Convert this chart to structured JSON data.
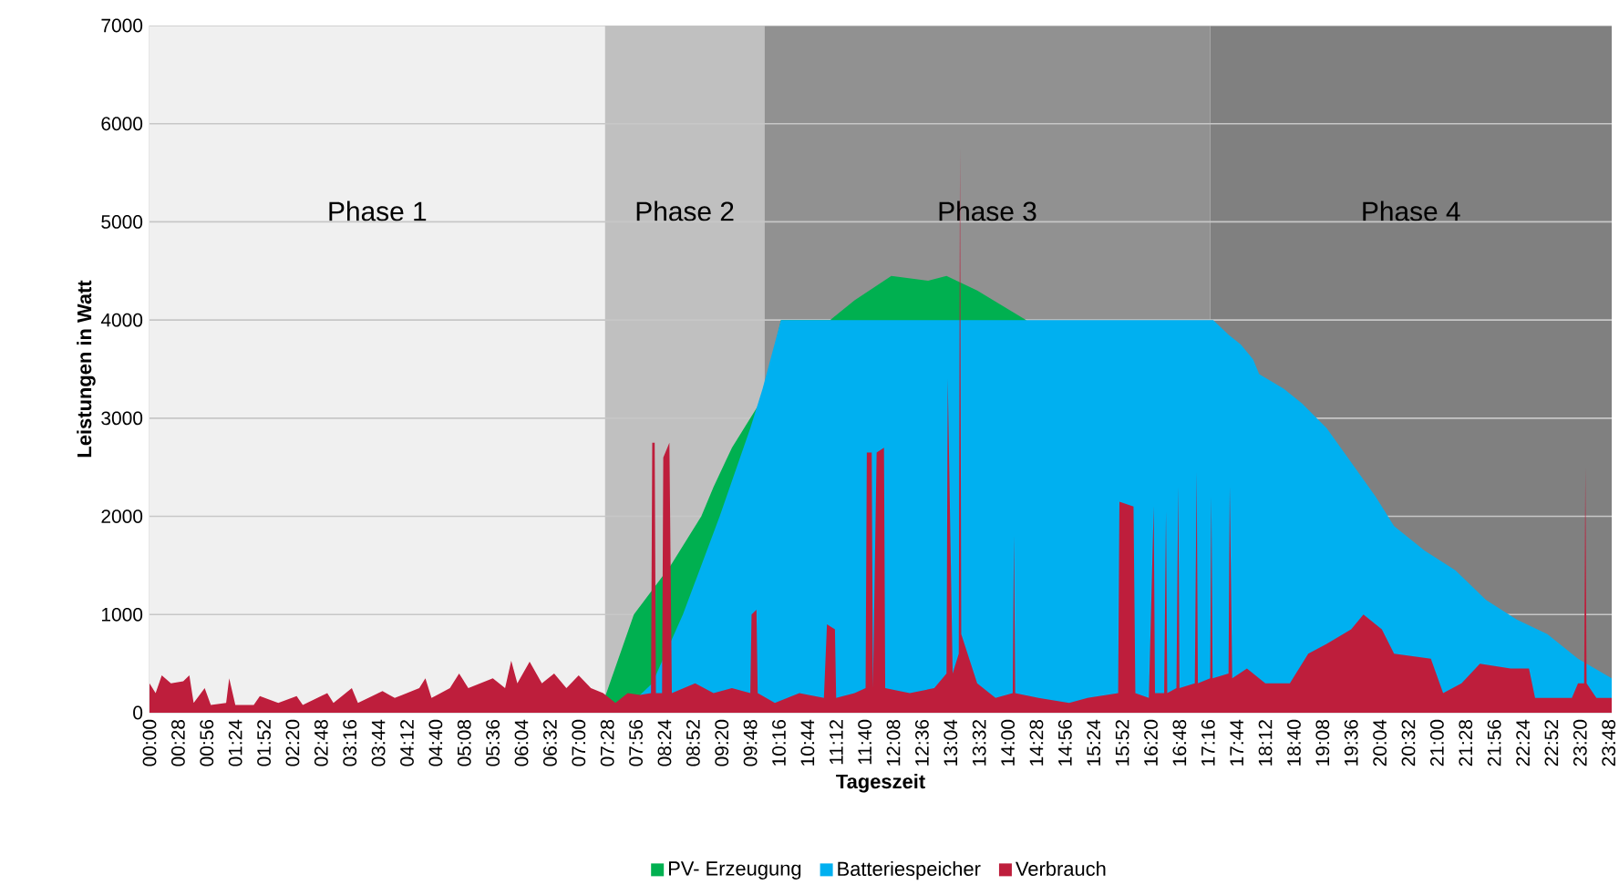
{
  "chart_data": {
    "type": "area",
    "xlabel": "Tageszeit",
    "ylabel": "Leistungen in Watt",
    "xlim": [
      0,
      23.85
    ],
    "ylim": [
      0,
      7000
    ],
    "yticks": [
      0,
      1000,
      2000,
      3000,
      4000,
      5000,
      6000,
      7000
    ],
    "xticks": [
      {
        "value": 0,
        "label": "00:00"
      },
      {
        "value": 0.4667,
        "label": "00:28"
      },
      {
        "value": 0.9333,
        "label": "00:56"
      },
      {
        "value": 1.4,
        "label": "01:24"
      },
      {
        "value": 1.8667,
        "label": "01:52"
      },
      {
        "value": 2.3333,
        "label": "02:20"
      },
      {
        "value": 2.8,
        "label": "02:48"
      },
      {
        "value": 3.2667,
        "label": "03:16"
      },
      {
        "value": 3.7333,
        "label": "03:44"
      },
      {
        "value": 4.2,
        "label": "04:12"
      },
      {
        "value": 4.6667,
        "label": "04:40"
      },
      {
        "value": 5.1333,
        "label": "05:08"
      },
      {
        "value": 5.6,
        "label": "05:36"
      },
      {
        "value": 6.0667,
        "label": "06:04"
      },
      {
        "value": 6.5333,
        "label": "06:32"
      },
      {
        "value": 7.0,
        "label": "07:00"
      },
      {
        "value": 7.4667,
        "label": "07:28"
      },
      {
        "value": 7.9333,
        "label": "07:56"
      },
      {
        "value": 8.4,
        "label": "08:24"
      },
      {
        "value": 8.8667,
        "label": "08:52"
      },
      {
        "value": 9.3333,
        "label": "09:20"
      },
      {
        "value": 9.8,
        "label": "09:48"
      },
      {
        "value": 10.2667,
        "label": "10:16"
      },
      {
        "value": 10.7333,
        "label": "10:44"
      },
      {
        "value": 11.2,
        "label": "11:12"
      },
      {
        "value": 11.6667,
        "label": "11:40"
      },
      {
        "value": 12.1333,
        "label": "12:08"
      },
      {
        "value": 12.6,
        "label": "12:36"
      },
      {
        "value": 13.0667,
        "label": "13:04"
      },
      {
        "value": 13.5333,
        "label": "13:32"
      },
      {
        "value": 14.0,
        "label": "14:00"
      },
      {
        "value": 14.4667,
        "label": "14:28"
      },
      {
        "value": 14.9333,
        "label": "14:56"
      },
      {
        "value": 15.4,
        "label": "15:24"
      },
      {
        "value": 15.8667,
        "label": "15:52"
      },
      {
        "value": 16.3333,
        "label": "16:20"
      },
      {
        "value": 16.8,
        "label": "16:48"
      },
      {
        "value": 17.2667,
        "label": "17:16"
      },
      {
        "value": 17.7333,
        "label": "17:44"
      },
      {
        "value": 18.2,
        "label": "18:12"
      },
      {
        "value": 18.6667,
        "label": "18:40"
      },
      {
        "value": 19.1333,
        "label": "19:08"
      },
      {
        "value": 19.6,
        "label": "19:36"
      },
      {
        "value": 20.0667,
        "label": "20:04"
      },
      {
        "value": 20.5333,
        "label": "20:32"
      },
      {
        "value": 21.0,
        "label": "21:00"
      },
      {
        "value": 21.4667,
        "label": "21:28"
      },
      {
        "value": 21.9333,
        "label": "21:56"
      },
      {
        "value": 22.4,
        "label": "22:24"
      },
      {
        "value": 22.8667,
        "label": "22:52"
      },
      {
        "value": 23.3333,
        "label": "23:20"
      },
      {
        "value": 23.8,
        "label": "23:48"
      }
    ],
    "grid": "y",
    "legend": "bottom",
    "bands": [
      {
        "axis": "x",
        "from": 0,
        "to": 7.43,
        "label": "Phase 1",
        "color": "#f0f0f0"
      },
      {
        "axis": "x",
        "from": 7.43,
        "to": 10.03,
        "label": "Phase 2",
        "color": "#c0c0c0"
      },
      {
        "axis": "x",
        "from": 10.03,
        "to": 17.3,
        "label": "Phase 3",
        "color": "#919191"
      },
      {
        "axis": "x",
        "from": 17.3,
        "to": 23.85,
        "label": "Phase 4",
        "color": "#808080"
      }
    ],
    "series": [
      {
        "name": "PV- Erzeugung",
        "color": "#00b050",
        "x": [
          7.34,
          7.9,
          8.5,
          9.0,
          9.2,
          9.5,
          9.8,
          10.0,
          10.3,
          11.1,
          11.5,
          12.1,
          12.7,
          13.0,
          13.5,
          13.9,
          14.3
        ],
        "values": [
          0,
          1000,
          1500,
          2000,
          2300,
          2700,
          3000,
          3200,
          4000,
          4000,
          4200,
          4450,
          4400,
          4450,
          4300,
          4150,
          4000
        ]
      },
      {
        "name": "Batteriespeicher",
        "color": "#00b0f0",
        "x": [
          7.7,
          8.2,
          8.7,
          9.3,
          9.8,
          10.0,
          10.3,
          17.35,
          17.6,
          17.8,
          18.0,
          18.1,
          18.5,
          18.8,
          19.2,
          19.6,
          20.0,
          20.3,
          20.8,
          21.3,
          21.8,
          22.3,
          22.8,
          23.3,
          23.85
        ],
        "values": [
          0,
          300,
          1000,
          2000,
          2900,
          3300,
          4000,
          4000,
          3850,
          3750,
          3600,
          3450,
          3300,
          3150,
          2900,
          2550,
          2200,
          1900,
          1650,
          1450,
          1150,
          950,
          800,
          550,
          350
        ]
      },
      {
        "name": "Verbrauch",
        "color": "#be1e3c",
        "x": [
          0,
          0.1,
          0.2,
          0.35,
          0.55,
          0.65,
          0.72,
          0.9,
          1.0,
          1.25,
          1.3,
          1.4,
          1.7,
          1.8,
          2.1,
          2.4,
          2.5,
          2.9,
          3.0,
          3.3,
          3.4,
          3.8,
          4.0,
          4.4,
          4.5,
          4.6,
          4.9,
          5.05,
          5.2,
          5.6,
          5.8,
          5.9,
          6.0,
          6.2,
          6.4,
          6.6,
          6.8,
          7.0,
          7.2,
          7.4,
          7.6,
          7.8,
          8.0,
          8.18,
          8.2,
          8.24,
          8.26,
          8.36,
          8.38,
          8.48,
          8.52,
          8.9,
          9.2,
          9.5,
          9.8,
          9.82,
          9.9,
          9.92,
          10.2,
          10.6,
          11.0,
          11.05,
          11.18,
          11.2,
          11.5,
          11.68,
          11.7,
          11.78,
          11.8,
          11.86,
          11.98,
          12.0,
          12.4,
          12.8,
          13.0,
          13.02,
          13.1,
          13.2,
          13.22,
          13.24,
          13.5,
          13.8,
          14.08,
          14.1,
          14.12,
          14.5,
          15.0,
          15.3,
          15.8,
          15.82,
          16.05,
          16.08,
          16.3,
          16.38,
          16.4,
          16.55,
          16.58,
          16.6,
          16.75,
          16.78,
          16.8,
          17.05,
          17.08,
          17.1,
          17.3,
          17.32,
          17.34,
          17.6,
          17.62,
          17.66,
          17.9,
          18.2,
          18.6,
          18.9,
          19.2,
          19.6,
          19.8,
          20.1,
          20.3,
          20.9,
          21.1,
          21.4,
          21.7,
          22.2,
          22.5,
          22.6,
          23.2,
          23.3,
          23.4,
          23.42,
          23.44,
          23.6,
          23.85
        ],
        "values": [
          300,
          200,
          380,
          300,
          320,
          380,
          100,
          250,
          80,
          100,
          350,
          80,
          80,
          170,
          100,
          170,
          80,
          200,
          100,
          250,
          100,
          220,
          150,
          250,
          350,
          150,
          250,
          400,
          250,
          350,
          250,
          530,
          300,
          520,
          300,
          400,
          250,
          380,
          250,
          200,
          100,
          200,
          180,
          200,
          2750,
          2750,
          200,
          200,
          2600,
          2750,
          200,
          300,
          200,
          250,
          200,
          1000,
          1050,
          200,
          100,
          200,
          150,
          900,
          850,
          150,
          200,
          250,
          2650,
          2650,
          250,
          2650,
          2700,
          250,
          200,
          250,
          400,
          3400,
          400,
          600,
          5750,
          800,
          300,
          150,
          200,
          1800,
          200,
          150,
          100,
          150,
          200,
          2150,
          2100,
          200,
          150,
          2100,
          200,
          200,
          2050,
          200,
          250,
          2300,
          250,
          300,
          2450,
          300,
          350,
          2200,
          350,
          400,
          2300,
          350,
          450,
          300,
          300,
          600,
          700,
          850,
          1000,
          850,
          600,
          550,
          200,
          300,
          500,
          450,
          450,
          150,
          150,
          300,
          300,
          2500,
          300,
          150,
          150
        ]
      }
    ]
  }
}
